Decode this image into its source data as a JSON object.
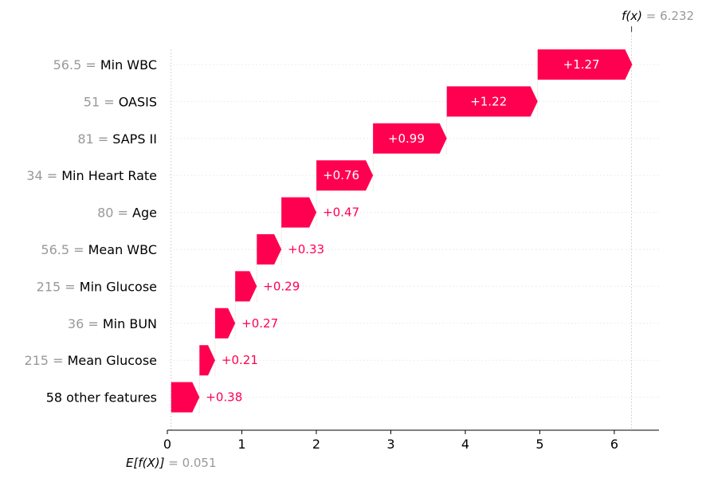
{
  "chart_data": {
    "type": "waterfall",
    "base_value": 0.051,
    "output_value": 6.232,
    "base_label": "E[f(X)]",
    "output_label": "f(x)",
    "base_value_text": "= 0.051",
    "output_value_text": "= 6.232",
    "xlim": [
      0,
      6.6
    ],
    "xticks": [
      0,
      1,
      2,
      3,
      4,
      5,
      6
    ],
    "xtick_labels": [
      "0",
      "1",
      "2",
      "3",
      "4",
      "5",
      "6"
    ],
    "positive_color": "#ff0051",
    "features": [
      {
        "value_text": "56.5 =",
        "name": "Min WBC",
        "contribution": 1.27,
        "label": "+1.27"
      },
      {
        "value_text": "51 =",
        "name": "OASIS",
        "contribution": 1.22,
        "label": "+1.22"
      },
      {
        "value_text": "81 =",
        "name": "SAPS II",
        "contribution": 0.99,
        "label": "+0.99"
      },
      {
        "value_text": "34 =",
        "name": "Min Heart Rate",
        "contribution": 0.76,
        "label": "+0.76"
      },
      {
        "value_text": "80 =",
        "name": "Age",
        "contribution": 0.47,
        "label": "+0.47"
      },
      {
        "value_text": "56.5 =",
        "name": "Mean WBC",
        "contribution": 0.33,
        "label": "+0.33"
      },
      {
        "value_text": "215 =",
        "name": "Min Glucose",
        "contribution": 0.29,
        "label": "+0.29"
      },
      {
        "value_text": "36 =",
        "name": "Min BUN",
        "contribution": 0.27,
        "label": "+0.27"
      },
      {
        "value_text": "215 =",
        "name": "Mean Glucose",
        "contribution": 0.21,
        "label": "+0.21"
      },
      {
        "value_text": "",
        "name": "58 other features",
        "contribution": 0.38,
        "label": "+0.38"
      }
    ]
  }
}
